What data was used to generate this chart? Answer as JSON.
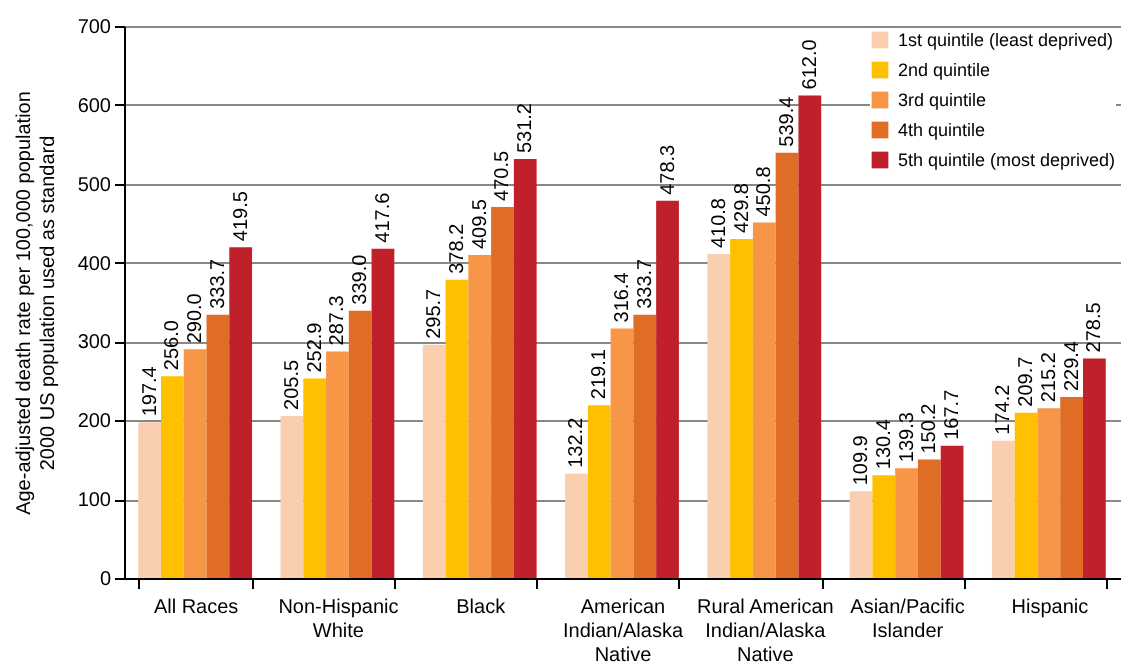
{
  "chart_data": {
    "type": "bar",
    "ylabel": "Age-adjusted death rate per 100,000 population 2000 US population used as standard",
    "categories": [
      "All Races",
      "Non-Hispanic White",
      "Black",
      "American Indian/Alaska Native",
      "Rural American Indian/Alaska Native",
      "Asian/Pacific Islander",
      "Hispanic"
    ],
    "series": [
      {
        "name": "1st quintile (least deprived)",
        "color": "#f9cfb0",
        "values": [
          197.4,
          205.5,
          295.7,
          132.2,
          410.8,
          109.9,
          174.2
        ]
      },
      {
        "name": "2nd quintile",
        "color": "#ffc000",
        "values": [
          256.0,
          252.9,
          378.2,
          219.1,
          429.8,
          130.4,
          209.7
        ]
      },
      {
        "name": "3rd quintile",
        "color": "#f79646",
        "values": [
          290.0,
          287.3,
          409.5,
          316.4,
          450.8,
          139.3,
          215.2
        ]
      },
      {
        "name": "4th quintile",
        "color": "#e06d26",
        "values": [
          333.7,
          339.0,
          470.5,
          333.7,
          539.4,
          150.2,
          229.4
        ]
      },
      {
        "name": "5th quintile (most deprived)",
        "color": "#c0202a",
        "values": [
          419.5,
          417.6,
          531.2,
          478.3,
          612.0,
          167.7,
          278.5
        ]
      }
    ],
    "value_labels": [
      [
        "197.4",
        "205.5",
        "295.7",
        "132.2",
        "410.8",
        "109.9",
        "174.2"
      ],
      [
        "256.0",
        "252.9",
        "378.2",
        "219.1",
        "429.8",
        "130.4",
        "209.7"
      ],
      [
        "290.0",
        "287.3",
        "409.5",
        "316.4",
        "450.8",
        "139.3",
        "215.2"
      ],
      [
        "333.7",
        "339.0",
        "470.5",
        "333.7",
        "539.4",
        "150.2",
        "229.4"
      ],
      [
        "419.5",
        "417.6",
        "531.2",
        "478.3",
        "612.0",
        "167.7",
        "278.5"
      ]
    ],
    "ylim": [
      0,
      700
    ],
    "yticks": [
      0,
      100,
      200,
      300,
      400,
      500,
      600,
      700
    ],
    "grid": "y",
    "legend": "top right"
  }
}
